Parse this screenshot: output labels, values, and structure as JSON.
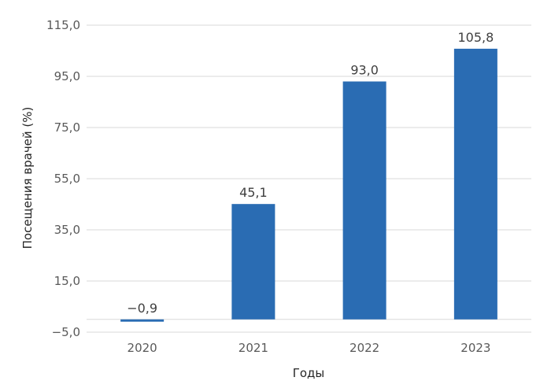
{
  "chart_data": {
    "type": "bar",
    "categories": [
      "2020",
      "2021",
      "2022",
      "2023"
    ],
    "values": [
      -0.9,
      45.1,
      93.0,
      105.8
    ],
    "data_labels": [
      "−0,9",
      "45,1",
      "93,0",
      "105,8"
    ],
    "xlabel": "Годы",
    "ylabel": "Посещения врачей (%)",
    "ylim": [
      -5,
      115
    ],
    "yticks": [
      -5,
      15,
      35,
      55,
      75,
      95,
      115
    ],
    "ytick_labels": [
      "−5,0",
      "15,0",
      "35,0",
      "55,0",
      "75,0",
      "95,0",
      "115,0"
    ],
    "grid": true,
    "legend": "none",
    "bar_color": "#2a6cb3",
    "grid_color": "#d9d9d9"
  }
}
